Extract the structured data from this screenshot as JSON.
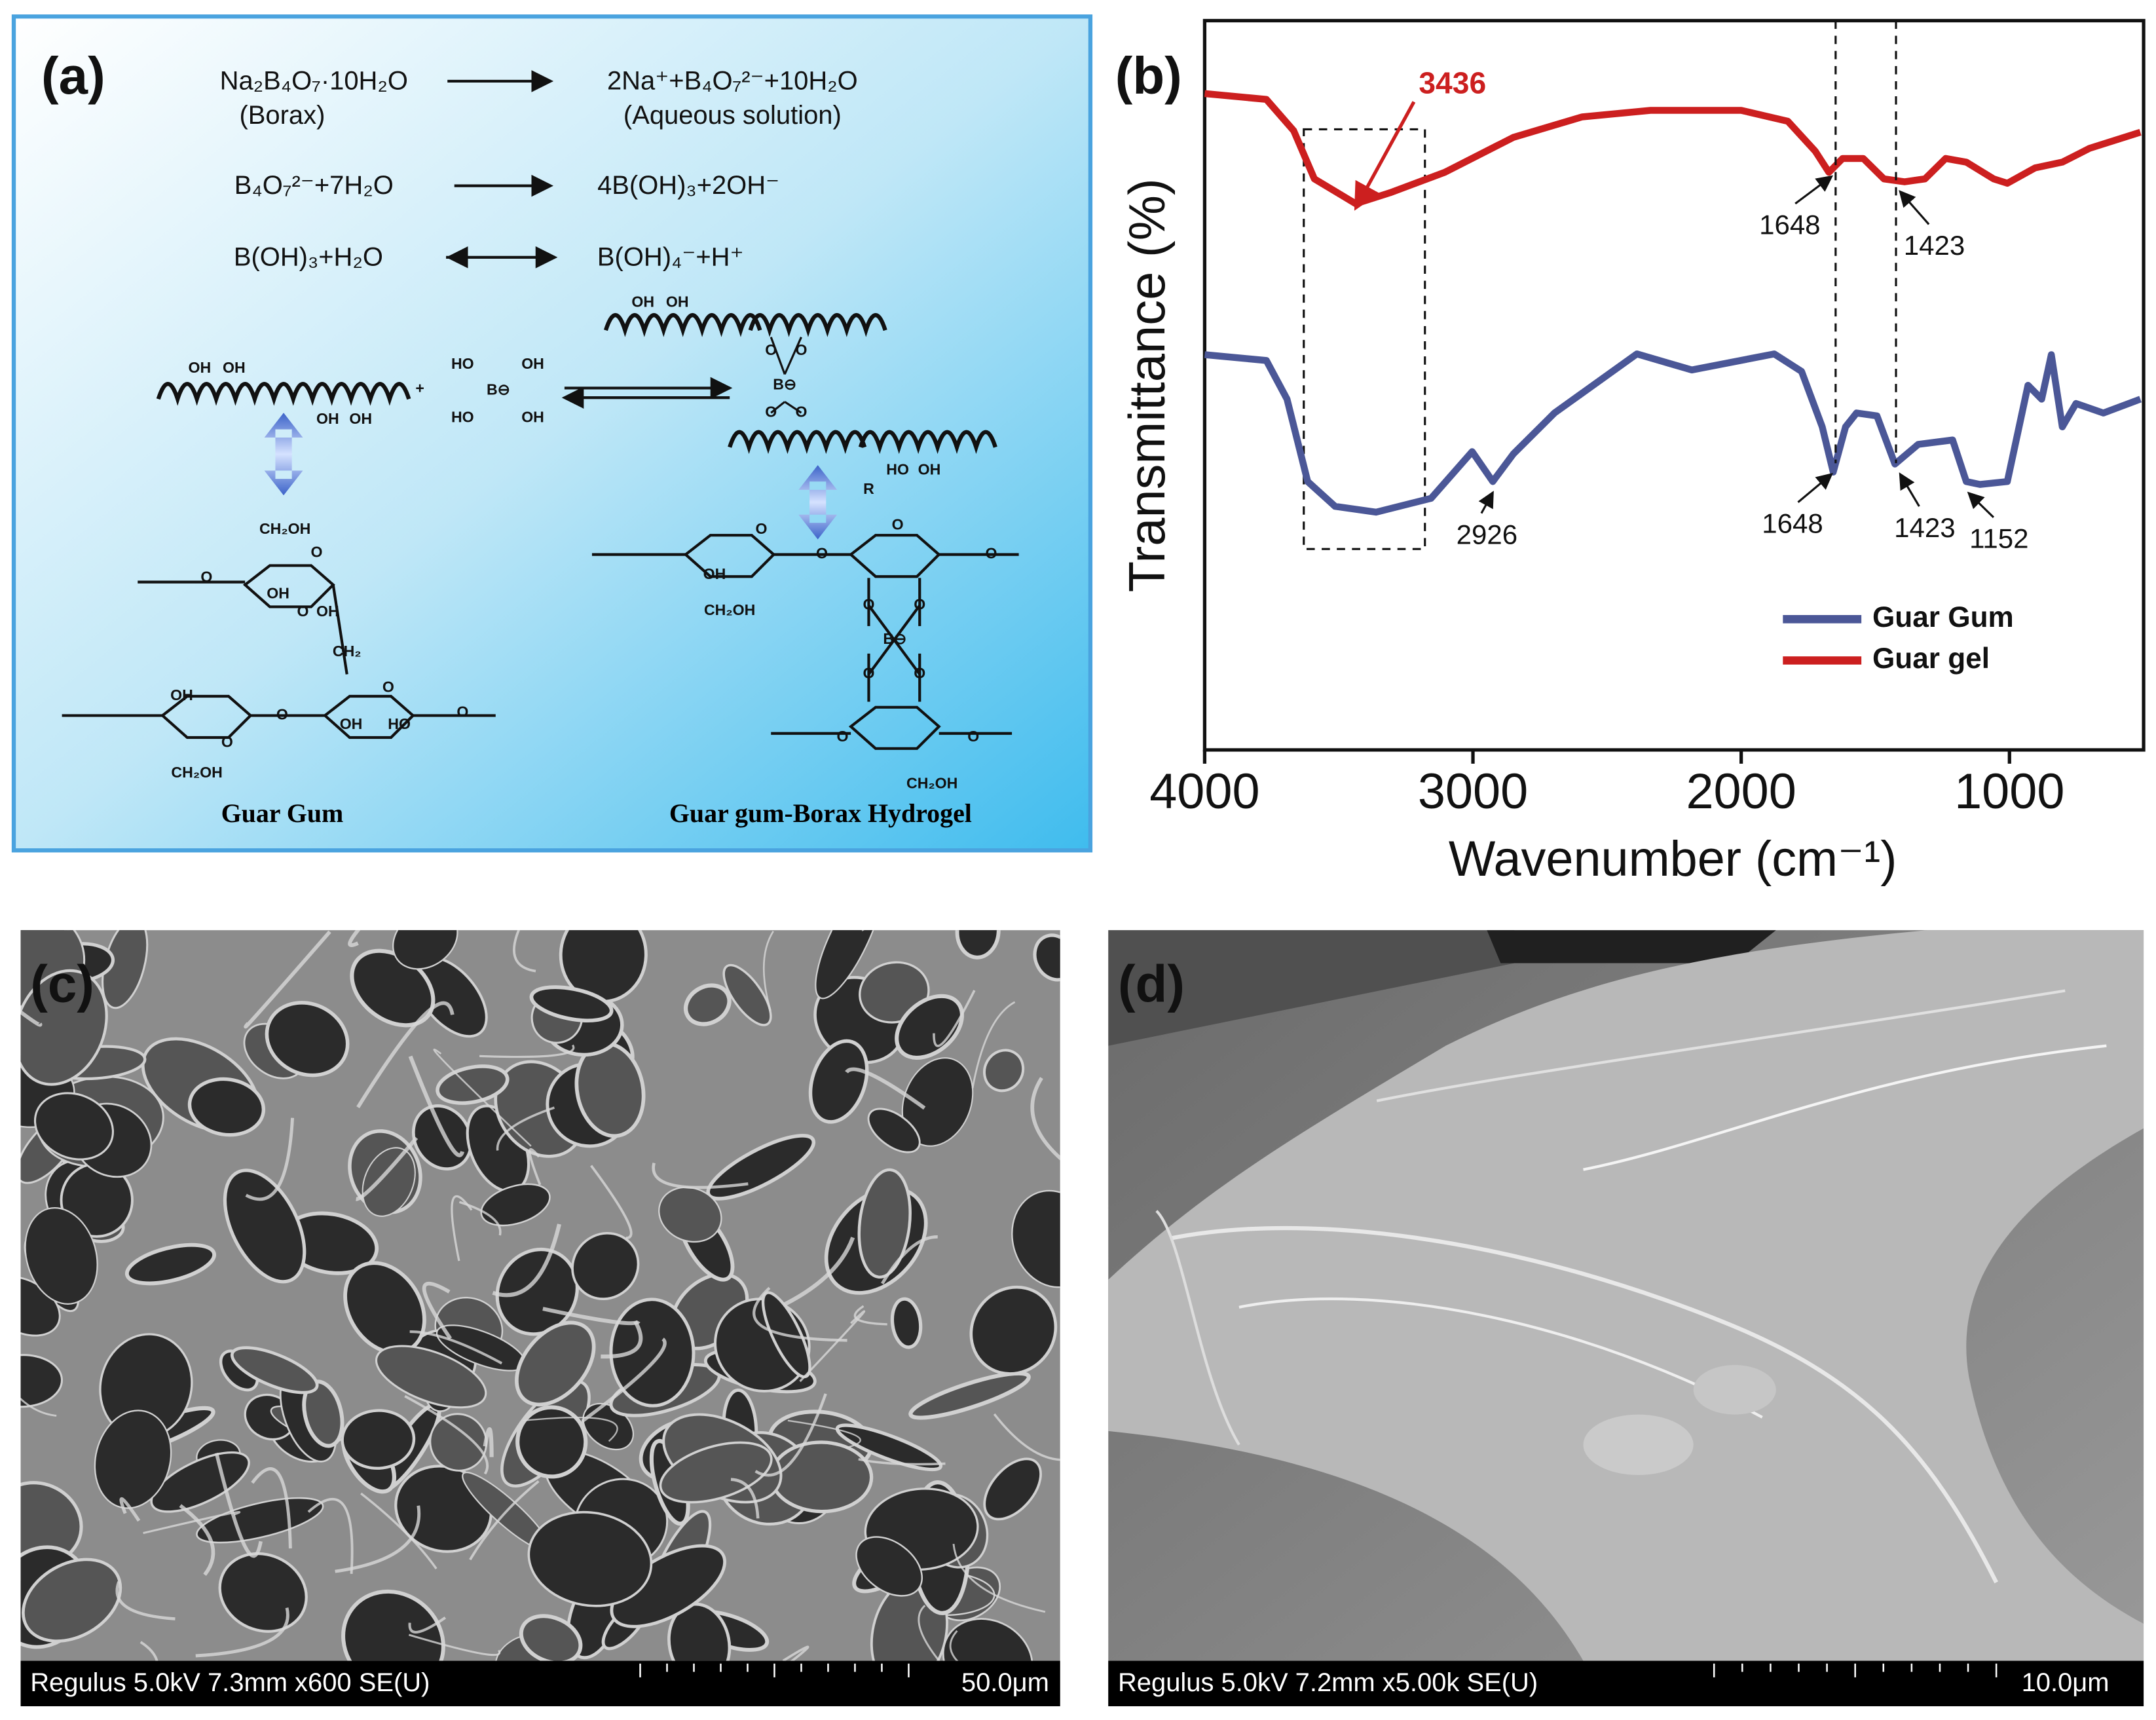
{
  "panel_a": {
    "label": "(a)",
    "equations": [
      {
        "left": "Na₂B₄O₇·10H₂O",
        "left_note": "(Borax)",
        "right": "2Na⁺+B₄O₇²⁻+10H₂O",
        "right_note": "(Aqueous solution)"
      },
      {
        "left": "B₄O₇²⁻+7H₂O",
        "right": "4B(OH)₃+2OH⁻"
      },
      {
        "left": "B(OH)₃+H₂O",
        "right": "B(OH)₄⁻+H⁺"
      }
    ],
    "structures": {
      "guar_gum": "Guar Gum",
      "hydrogel": "Guar gum-Borax Hydrogel",
      "labels": [
        "OH",
        "OH",
        "OH",
        "OH",
        "HO",
        "OH",
        "B⊖",
        "HO",
        "OH",
        "+",
        "OH",
        "OH",
        "O",
        "O",
        "B⊖",
        "O",
        "O",
        "HO",
        "OH",
        "CH₂OH",
        "OH",
        "OH",
        "O",
        "O",
        "CH₂",
        "O",
        "OH",
        "CH₂OH",
        "O",
        "O",
        "OH",
        "HO",
        "O",
        "O",
        "R",
        "OH",
        "CH₂OH",
        "O",
        "O",
        "O",
        "B⊖",
        "O",
        "O",
        "O",
        "O",
        "O",
        "CH₂OH",
        "O",
        "O"
      ]
    }
  },
  "chart_data": {
    "type": "line",
    "label": "(b)",
    "xlabel": "Wavenumber (cm⁻¹)",
    "ylabel": "Transmittance (%)",
    "xlim": [
      4000,
      500
    ],
    "xticks": [
      4000,
      3000,
      2000,
      1000
    ],
    "ylim": [
      0,
      100
    ],
    "legend": "lower right",
    "series": [
      {
        "name": "Guar Gum",
        "color": "#4b5797",
        "x": [
          4000,
          3770,
          3693,
          3616,
          3514,
          3361,
          3156,
          3003,
          2926,
          2849,
          2696,
          2389,
          2184,
          1877,
          1775,
          1698,
          1657,
          1611,
          1570,
          1494,
          1427,
          1340,
          1212,
          1161,
          1110,
          1008,
          931,
          880,
          844,
          803,
          752,
          650,
          512
        ],
        "values": [
          54.2,
          53.4,
          48.1,
          36.8,
          33.4,
          32.6,
          34.5,
          40.9,
          36.8,
          40.6,
          46.2,
          54.3,
          52.1,
          54.3,
          51.9,
          44.3,
          38.1,
          44.3,
          46.2,
          45.8,
          39.2,
          41.9,
          42.5,
          36.8,
          36.4,
          36.8,
          50.0,
          48.1,
          54.2,
          44.3,
          47.5,
          46.2,
          48.1
        ]
      },
      {
        "name": "Guar gel",
        "color": "#cc1f1f",
        "x": [
          4000,
          3770,
          3668,
          3591,
          3437,
          3309,
          3105,
          2849,
          2593,
          2338,
          2000,
          1826,
          1724,
          1673,
          1622,
          1545,
          1468,
          1391,
          1315,
          1238,
          1161,
          1059,
          1008,
          905,
          803,
          701,
          512
        ],
        "values": [
          90.0,
          89.2,
          84.9,
          78.3,
          74.9,
          76.4,
          79.2,
          84.0,
          86.8,
          87.7,
          87.7,
          86.2,
          82.1,
          79.2,
          81.1,
          81.1,
          78.3,
          77.9,
          78.3,
          81.1,
          80.6,
          78.3,
          77.7,
          79.8,
          80.6,
          82.5,
          84.7
        ]
      }
    ],
    "annotations": {
      "gum": [
        2926,
        1648,
        1423,
        1152
      ],
      "gel": [
        3436,
        1648,
        1423
      ]
    }
  },
  "panel_c": {
    "label": "(c)",
    "caption": "Regulus 5.0kV 7.3mm x600 SE(U)",
    "scale": "50.0μm"
  },
  "panel_d": {
    "label": "(d)",
    "caption": "Regulus 5.0kV 7.2mm x5.00k SE(U)",
    "scale": "10.0μm"
  }
}
